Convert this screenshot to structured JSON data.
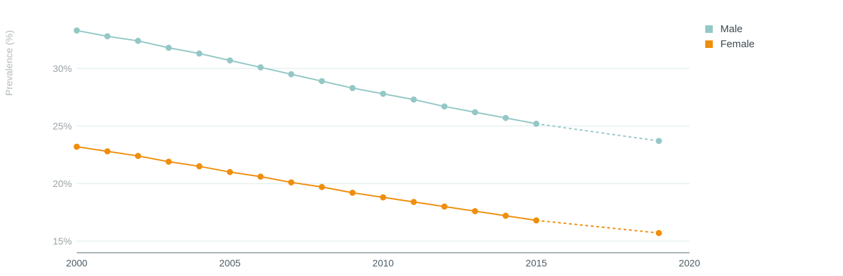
{
  "chart_data": {
    "type": "line",
    "ylabel": "Prevalence (%)",
    "xlim": [
      2000,
      2020
    ],
    "ylim": [
      14,
      34
    ],
    "x_ticks": [
      "2000",
      "2005",
      "2010",
      "2015",
      "2020"
    ],
    "y_ticks": [
      "15%",
      "20%",
      "25%",
      "30%"
    ],
    "grid": "horizontal",
    "legend_position": "top-right",
    "series": [
      {
        "name": "Male",
        "color": "#93c8c6",
        "points": [
          {
            "x": 2000,
            "y": 33.3
          },
          {
            "x": 2001,
            "y": 32.8
          },
          {
            "x": 2002,
            "y": 32.4
          },
          {
            "x": 2003,
            "y": 31.8
          },
          {
            "x": 2004,
            "y": 31.3
          },
          {
            "x": 2005,
            "y": 30.7
          },
          {
            "x": 2006,
            "y": 30.1
          },
          {
            "x": 2007,
            "y": 29.5
          },
          {
            "x": 2008,
            "y": 28.9
          },
          {
            "x": 2009,
            "y": 28.3
          },
          {
            "x": 2010,
            "y": 27.8
          },
          {
            "x": 2011,
            "y": 27.3
          },
          {
            "x": 2012,
            "y": 26.7
          },
          {
            "x": 2013,
            "y": 26.2
          },
          {
            "x": 2014,
            "y": 25.7
          },
          {
            "x": 2015,
            "y": 25.2
          }
        ],
        "projected": [
          {
            "x": 2015,
            "y": 25.2
          },
          {
            "x": 2019,
            "y": 23.7
          }
        ]
      },
      {
        "name": "Female",
        "color": "#ef8e0c",
        "points": [
          {
            "x": 2000,
            "y": 23.2
          },
          {
            "x": 2001,
            "y": 22.8
          },
          {
            "x": 2002,
            "y": 22.4
          },
          {
            "x": 2003,
            "y": 21.9
          },
          {
            "x": 2004,
            "y": 21.5
          },
          {
            "x": 2005,
            "y": 21.0
          },
          {
            "x": 2006,
            "y": 20.6
          },
          {
            "x": 2007,
            "y": 20.1
          },
          {
            "x": 2008,
            "y": 19.7
          },
          {
            "x": 2009,
            "y": 19.2
          },
          {
            "x": 2010,
            "y": 18.8
          },
          {
            "x": 2011,
            "y": 18.4
          },
          {
            "x": 2012,
            "y": 18.0
          },
          {
            "x": 2013,
            "y": 17.6
          },
          {
            "x": 2014,
            "y": 17.2
          },
          {
            "x": 2015,
            "y": 16.8
          }
        ],
        "projected": [
          {
            "x": 2015,
            "y": 16.8
          },
          {
            "x": 2019,
            "y": 15.7
          }
        ]
      }
    ]
  },
  "colors": {
    "gridline": "#dbeae8",
    "axis_line": "#5a6a72"
  }
}
